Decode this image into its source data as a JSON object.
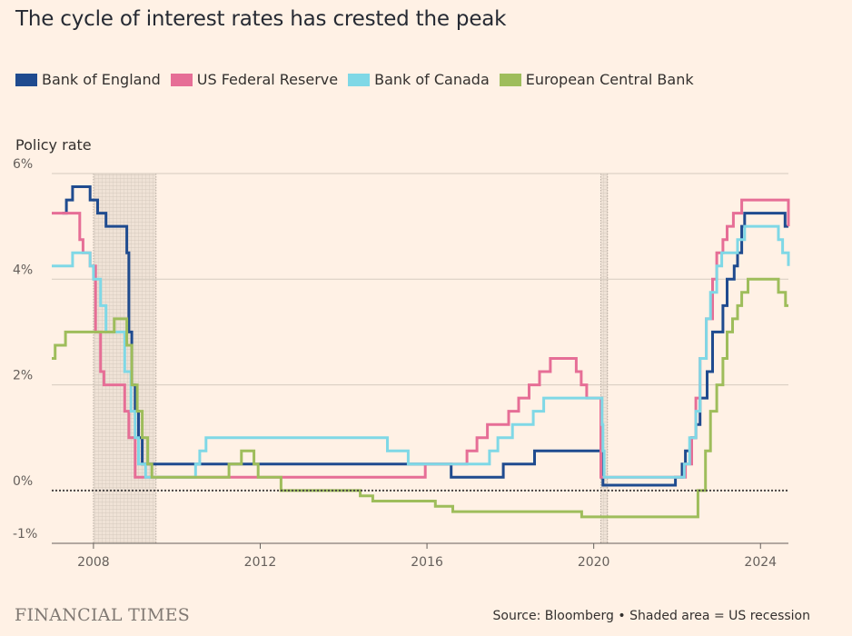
{
  "header": {
    "title": "The cycle of interest rates has crested the peak",
    "subtitle": "Policy rate"
  },
  "footer": {
    "brand": "FINANCIAL TIMES",
    "source": "Source: Bloomberg • Shaded area = US recession"
  },
  "colors": {
    "boe": "#1f4b8f",
    "fed": "#e66e96",
    "boc": "#7fd8e6",
    "ecb": "#9ebd5b",
    "grid": "#d6cbbf",
    "zero_line": "#4a4644",
    "recession_fill": "#d9cfc6"
  },
  "chart_data": {
    "type": "line",
    "step": true,
    "title": "The cycle of interest rates has crested the peak",
    "ylabel": "Policy rate",
    "xlabel": "",
    "xlim": [
      2007.0,
      2024.67
    ],
    "ylim": [
      -1,
      6
    ],
    "y_ticks": [
      -1,
      0,
      2,
      4,
      6
    ],
    "y_tick_labels": [
      "-1%",
      "0%",
      "2%",
      "4%",
      "6%"
    ],
    "x_ticks": [
      2008,
      2012,
      2016,
      2020,
      2024
    ],
    "x_tick_labels": [
      "2008",
      "2012",
      "2016",
      "2020",
      "2024"
    ],
    "legend_position": "top",
    "recessions": [
      {
        "start": 2008.0,
        "end": 2009.5
      },
      {
        "start": 2020.17,
        "end": 2020.33
      }
    ],
    "series": [
      {
        "name": "Bank of England",
        "key": "boe",
        "points": [
          [
            2007.25,
            5.25
          ],
          [
            2007.35,
            5.5
          ],
          [
            2007.5,
            5.75
          ],
          [
            2007.92,
            5.5
          ],
          [
            2008.1,
            5.25
          ],
          [
            2008.3,
            5.0
          ],
          [
            2008.8,
            4.5
          ],
          [
            2008.85,
            3.0
          ],
          [
            2008.92,
            2.0
          ],
          [
            2009.0,
            1.5
          ],
          [
            2009.08,
            1.0
          ],
          [
            2009.17,
            0.5
          ],
          [
            2016.58,
            0.25
          ],
          [
            2017.83,
            0.5
          ],
          [
            2018.58,
            0.75
          ],
          [
            2020.2,
            0.25
          ],
          [
            2020.22,
            0.1
          ],
          [
            2021.96,
            0.25
          ],
          [
            2022.12,
            0.5
          ],
          [
            2022.2,
            0.75
          ],
          [
            2022.35,
            1.0
          ],
          [
            2022.45,
            1.25
          ],
          [
            2022.55,
            1.75
          ],
          [
            2022.72,
            2.25
          ],
          [
            2022.85,
            3.0
          ],
          [
            2023.1,
            3.5
          ],
          [
            2023.2,
            4.0
          ],
          [
            2023.37,
            4.25
          ],
          [
            2023.45,
            4.5
          ],
          [
            2023.55,
            5.0
          ],
          [
            2023.62,
            5.25
          ],
          [
            2024.59,
            5.0
          ],
          [
            2024.67,
            5.0
          ]
        ]
      },
      {
        "name": "US Federal Reserve",
        "key": "fed",
        "points": [
          [
            2007.0,
            5.25
          ],
          [
            2007.67,
            4.75
          ],
          [
            2007.75,
            4.5
          ],
          [
            2007.92,
            4.25
          ],
          [
            2008.05,
            3.0
          ],
          [
            2008.17,
            2.25
          ],
          [
            2008.25,
            2.0
          ],
          [
            2008.75,
            1.5
          ],
          [
            2008.85,
            1.0
          ],
          [
            2009.0,
            0.25
          ],
          [
            2015.96,
            0.5
          ],
          [
            2016.96,
            0.75
          ],
          [
            2017.2,
            1.0
          ],
          [
            2017.45,
            1.25
          ],
          [
            2017.96,
            1.5
          ],
          [
            2018.2,
            1.75
          ],
          [
            2018.45,
            2.0
          ],
          [
            2018.7,
            2.25
          ],
          [
            2018.96,
            2.5
          ],
          [
            2019.58,
            2.25
          ],
          [
            2019.7,
            2.0
          ],
          [
            2019.83,
            1.75
          ],
          [
            2020.17,
            0.25
          ],
          [
            2022.2,
            0.5
          ],
          [
            2022.35,
            1.0
          ],
          [
            2022.45,
            1.75
          ],
          [
            2022.55,
            2.5
          ],
          [
            2022.7,
            3.25
          ],
          [
            2022.85,
            4.0
          ],
          [
            2022.95,
            4.5
          ],
          [
            2023.1,
            4.75
          ],
          [
            2023.2,
            5.0
          ],
          [
            2023.35,
            5.25
          ],
          [
            2023.55,
            5.5
          ],
          [
            2024.67,
            5.0
          ]
        ]
      },
      {
        "name": "Bank of Canada",
        "key": "boc",
        "points": [
          [
            2007.0,
            4.25
          ],
          [
            2007.5,
            4.5
          ],
          [
            2007.92,
            4.25
          ],
          [
            2008.0,
            4.0
          ],
          [
            2008.17,
            3.5
          ],
          [
            2008.3,
            3.0
          ],
          [
            2008.45,
            3.0
          ],
          [
            2008.75,
            2.25
          ],
          [
            2008.9,
            1.5
          ],
          [
            2009.0,
            1.0
          ],
          [
            2009.08,
            0.5
          ],
          [
            2009.25,
            0.25
          ],
          [
            2010.45,
            0.5
          ],
          [
            2010.55,
            0.75
          ],
          [
            2010.7,
            1.0
          ],
          [
            2015.05,
            0.75
          ],
          [
            2015.55,
            0.5
          ],
          [
            2017.5,
            0.75
          ],
          [
            2017.7,
            1.0
          ],
          [
            2018.05,
            1.25
          ],
          [
            2018.55,
            1.5
          ],
          [
            2018.8,
            1.75
          ],
          [
            2020.2,
            1.25
          ],
          [
            2020.22,
            0.75
          ],
          [
            2020.25,
            0.25
          ],
          [
            2022.17,
            0.5
          ],
          [
            2022.3,
            1.0
          ],
          [
            2022.45,
            1.5
          ],
          [
            2022.55,
            2.5
          ],
          [
            2022.7,
            3.25
          ],
          [
            2022.8,
            3.75
          ],
          [
            2022.95,
            4.25
          ],
          [
            2023.07,
            4.5
          ],
          [
            2023.45,
            4.75
          ],
          [
            2023.62,
            5.0
          ],
          [
            2024.43,
            4.75
          ],
          [
            2024.53,
            4.5
          ],
          [
            2024.67,
            4.25
          ]
        ]
      },
      {
        "name": "European Central Bank",
        "key": "ecb",
        "points": [
          [
            2007.0,
            2.5
          ],
          [
            2007.08,
            2.75
          ],
          [
            2007.33,
            3.0
          ],
          [
            2008.5,
            3.25
          ],
          [
            2008.8,
            2.75
          ],
          [
            2008.92,
            2.0
          ],
          [
            2009.05,
            1.5
          ],
          [
            2009.17,
            1.0
          ],
          [
            2009.3,
            0.5
          ],
          [
            2009.4,
            0.25
          ],
          [
            2011.25,
            0.5
          ],
          [
            2011.55,
            0.75
          ],
          [
            2011.85,
            0.5
          ],
          [
            2011.95,
            0.25
          ],
          [
            2012.5,
            0.0
          ],
          [
            2014.4,
            -0.1
          ],
          [
            2014.7,
            -0.2
          ],
          [
            2016.2,
            -0.3
          ],
          [
            2016.62,
            -0.4
          ],
          [
            2019.71,
            -0.5
          ],
          [
            2022.5,
            0.0
          ],
          [
            2022.68,
            0.75
          ],
          [
            2022.8,
            1.5
          ],
          [
            2022.95,
            2.0
          ],
          [
            2023.1,
            2.5
          ],
          [
            2023.2,
            3.0
          ],
          [
            2023.33,
            3.25
          ],
          [
            2023.45,
            3.5
          ],
          [
            2023.55,
            3.75
          ],
          [
            2023.7,
            4.0
          ],
          [
            2024.43,
            3.75
          ],
          [
            2024.6,
            3.5
          ],
          [
            2024.67,
            3.5
          ]
        ]
      }
    ]
  }
}
